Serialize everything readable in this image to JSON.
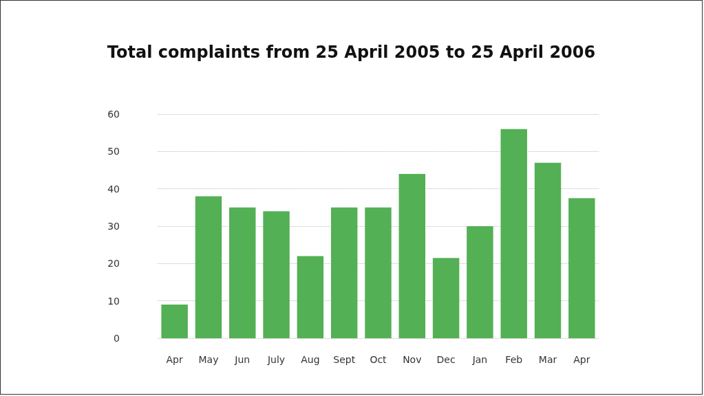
{
  "chart_data": {
    "type": "bar",
    "title": "Total complaints from 25 April 2005 to 25 April 2006",
    "categories": [
      "Apr",
      "May",
      "Jun",
      "July",
      "Aug",
      "Sept",
      "Oct",
      "Nov",
      "Dec",
      "Jan",
      "Feb",
      "Mar",
      "Apr"
    ],
    "values": [
      9,
      38,
      35,
      34,
      22,
      35,
      35,
      44,
      21.5,
      30,
      56,
      47,
      37.5
    ],
    "color": "#54b054",
    "ylim": [
      0,
      60
    ],
    "yticks": [
      0,
      10,
      20,
      30,
      40,
      50,
      60
    ],
    "grid": "y"
  }
}
